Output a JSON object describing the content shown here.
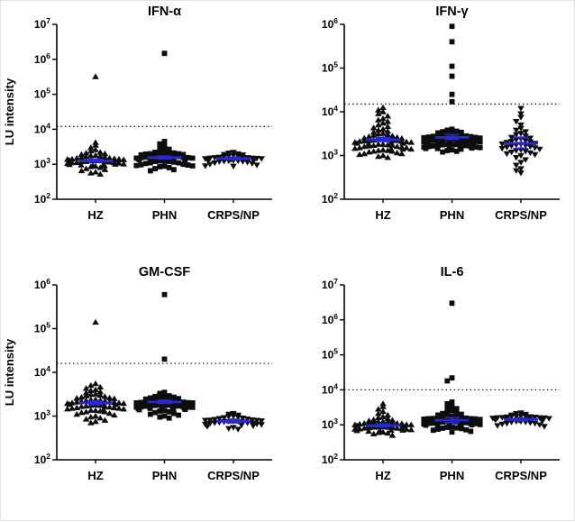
{
  "figure": {
    "ylabel": "LU intensity",
    "background": "#ffffff",
    "colors": {
      "points": "#0d0d0d",
      "mean": "#2828d8",
      "axis": "#000000",
      "threshold": "#222222",
      "text": "#000000"
    },
    "point_layout": "beeswarm",
    "legend": "none"
  },
  "chart_data": [
    {
      "type": "scatter",
      "title": "IFN-α",
      "ylabel": "LU intensity",
      "show_ylabel": true,
      "log_ylim": [
        2,
        7
      ],
      "threshold": 12000,
      "categories": [
        "HZ",
        "PHN",
        "CRPS/NP"
      ],
      "series": [
        {
          "name": "HZ",
          "marker": "triangle-up",
          "mean": 1250,
          "err_lo": 1150,
          "err_hi": 1380,
          "values": [
            520,
            560,
            600,
            650,
            700,
            750,
            800,
            850,
            880,
            900,
            920,
            950,
            980,
            1000,
            1000,
            1020,
            1050,
            1080,
            1100,
            1100,
            1120,
            1150,
            1180,
            1200,
            1200,
            1250,
            1250,
            1300,
            1300,
            1350,
            1400,
            1400,
            1450,
            1500,
            1500,
            1550,
            1600,
            1650,
            1700,
            1750,
            1800,
            1900,
            2000,
            2100,
            2200,
            2400,
            2600,
            3000,
            3500,
            4200,
            1250,
            1320,
            1380,
            320000
          ]
        },
        {
          "name": "PHN",
          "marker": "square",
          "mean": 1550,
          "err_lo": 1430,
          "err_hi": 1700,
          "values": [
            650,
            700,
            750,
            800,
            850,
            880,
            900,
            920,
            950,
            960,
            1000,
            1050,
            1100,
            1100,
            1150,
            1200,
            1200,
            1250,
            1250,
            1300,
            1300,
            1350,
            1350,
            1400,
            1400,
            1450,
            1450,
            1500,
            1500,
            1500,
            1550,
            1550,
            1600,
            1600,
            1650,
            1650,
            1700,
            1700,
            1750,
            1800,
            1800,
            1850,
            1900,
            1950,
            2000,
            2000,
            2100,
            2200,
            2300,
            2400,
            2500,
            2700,
            3000,
            3300,
            3800,
            4500,
            1480,
            1480000
          ]
        },
        {
          "name": "CRPS/NP",
          "marker": "triangle-down",
          "mean": 1450,
          "err_lo": 1350,
          "err_hi": 1580,
          "values": [
            880,
            900,
            950,
            1000,
            1050,
            1100,
            1150,
            1200,
            1200,
            1220,
            1250,
            1250,
            1280,
            1300,
            1300,
            1320,
            1350,
            1350,
            1380,
            1400,
            1400,
            1420,
            1450,
            1450,
            1480,
            1500,
            1500,
            1550,
            1550,
            1600,
            1600,
            1650,
            1700,
            1750,
            1800,
            1850,
            1900,
            2000,
            2100,
            2200
          ]
        }
      ]
    },
    {
      "type": "scatter",
      "title": "IFN-γ",
      "ylabel": "LU intensity",
      "show_ylabel": false,
      "log_ylim": [
        2,
        6
      ],
      "threshold": 15000,
      "categories": [
        "HZ",
        "PHN",
        "CRPS/NP"
      ],
      "series": [
        {
          "name": "HZ",
          "marker": "triangle-up",
          "mean": 2300,
          "err_lo": 2100,
          "err_hi": 2550,
          "values": [
            900,
            950,
            1000,
            1050,
            1100,
            1100,
            1150,
            1200,
            1250,
            1250,
            1300,
            1300,
            1350,
            1400,
            1400,
            1450,
            1500,
            1500,
            1550,
            1600,
            1600,
            1650,
            1700,
            1700,
            1750,
            1800,
            1800,
            1850,
            1900,
            1900,
            1950,
            2000,
            2000,
            2050,
            2100,
            2100,
            2150,
            2200,
            2200,
            2250,
            2300,
            2350,
            2400,
            2450,
            2500,
            2600,
            2700,
            2800,
            2900,
            3000,
            3100,
            3200,
            3400,
            3600,
            3800,
            4000,
            4300,
            4600,
            5000,
            5500,
            6000,
            6500,
            7000,
            8000,
            9000,
            10000,
            11000,
            12500,
            1400,
            2200
          ]
        },
        {
          "name": "PHN",
          "marker": "square",
          "mean": 2600,
          "err_lo": 2350,
          "err_hi": 3000,
          "values": [
            1200,
            1250,
            1300,
            1350,
            1400,
            1400,
            1450,
            1450,
            1480,
            1500,
            1520,
            1550,
            1560,
            1600,
            1620,
            1650,
            1680,
            1700,
            1720,
            1750,
            1780,
            1800,
            1800,
            1820,
            1850,
            1880,
            1900,
            1900,
            1920,
            1950,
            1960,
            2000,
            2000,
            2000,
            2020,
            2050,
            2080,
            2100,
            2100,
            2150,
            2200,
            2200,
            2250,
            2300,
            2300,
            2350,
            2400,
            2400,
            2450,
            2500,
            2500,
            2550,
            2600,
            2650,
            2700,
            2750,
            2800,
            2850,
            2900,
            3000,
            3000,
            3100,
            3200,
            3300,
            3400,
            3500,
            3600,
            3800,
            4000,
            17000,
            25000,
            65000,
            110000,
            400000,
            900000
          ]
        },
        {
          "name": "CRPS/NP",
          "marker": "triangle-down",
          "mean": 1900,
          "err_lo": 1450,
          "err_hi": 2600,
          "values": [
            400,
            450,
            500,
            600,
            700,
            800,
            900,
            1000,
            1050,
            1100,
            1150,
            1200,
            1250,
            1300,
            1350,
            1400,
            1450,
            1500,
            1550,
            1600,
            1650,
            1700,
            1750,
            1800,
            1850,
            1900,
            2000,
            2050,
            2100,
            2200,
            2300,
            2400,
            2500,
            2600,
            2800,
            3000,
            3200,
            3500,
            3800,
            4200,
            5000,
            6000,
            7500,
            9000,
            12000
          ]
        }
      ]
    },
    {
      "type": "scatter",
      "title": "GM-CSF",
      "ylabel": "LU intensity",
      "show_ylabel": true,
      "log_ylim": [
        2,
        6
      ],
      "threshold": 16000,
      "categories": [
        "HZ",
        "PHN",
        "CRPS/NP"
      ],
      "series": [
        {
          "name": "HZ",
          "marker": "triangle-up",
          "mean": 2000,
          "err_lo": 1850,
          "err_hi": 2200,
          "values": [
            700,
            750,
            800,
            850,
            900,
            950,
            1000,
            1050,
            1100,
            1150,
            1200,
            1250,
            1250,
            1300,
            1350,
            1350,
            1400,
            1450,
            1450,
            1500,
            1500,
            1550,
            1550,
            1600,
            1650,
            1650,
            1700,
            1750,
            1750,
            1800,
            1850,
            1850,
            1900,
            1950,
            1950,
            2000,
            2000,
            2050,
            2100,
            2100,
            2150,
            2200,
            2250,
            2300,
            2350,
            2400,
            2500,
            2550,
            2600,
            2700,
            2800,
            2900,
            3000,
            3100,
            3200,
            3400,
            3600,
            3800,
            4000,
            4300,
            4600,
            5000,
            5500,
            140000
          ]
        },
        {
          "name": "PHN",
          "marker": "square",
          "mean": 2100,
          "err_lo": 1950,
          "err_hi": 2300,
          "values": [
            900,
            950,
            1000,
            1050,
            1100,
            1150,
            1200,
            1250,
            1300,
            1350,
            1400,
            1420,
            1450,
            1480,
            1500,
            1500,
            1520,
            1550,
            1580,
            1600,
            1600,
            1620,
            1650,
            1680,
            1700,
            1700,
            1720,
            1750,
            1780,
            1800,
            1800,
            1820,
            1850,
            1880,
            1900,
            1900,
            1920,
            1950,
            1980,
            2000,
            2000,
            2020,
            2050,
            2080,
            2100,
            2100,
            2150,
            2200,
            2250,
            2300,
            2350,
            2400,
            2450,
            2500,
            2600,
            2700,
            2800,
            2900,
            3000,
            3100,
            3300,
            3500,
            20000,
            600000
          ]
        },
        {
          "name": "CRPS/NP",
          "marker": "triangle-down",
          "mean": 760,
          "err_lo": 700,
          "err_hi": 830,
          "values": [
            500,
            520,
            550,
            580,
            600,
            620,
            640,
            650,
            660,
            680,
            690,
            700,
            700,
            720,
            730,
            740,
            750,
            760,
            770,
            780,
            800,
            800,
            810,
            820,
            840,
            860,
            880,
            900,
            920,
            950,
            980,
            1000,
            1050,
            1100,
            1150
          ]
        }
      ]
    },
    {
      "type": "scatter",
      "title": "IL-6",
      "ylabel": "LU intensity",
      "show_ylabel": false,
      "log_ylim": [
        2,
        7
      ],
      "threshold": 10000,
      "categories": [
        "HZ",
        "PHN",
        "CRPS/NP"
      ],
      "series": [
        {
          "name": "HZ",
          "marker": "triangle-up",
          "mean": 950,
          "err_lo": 870,
          "err_hi": 1050,
          "values": [
            500,
            550,
            580,
            600,
            620,
            650,
            650,
            680,
            700,
            700,
            720,
            750,
            750,
            760,
            780,
            800,
            800,
            820,
            840,
            850,
            850,
            860,
            880,
            900,
            900,
            920,
            940,
            950,
            950,
            980,
            1000,
            1000,
            1020,
            1050,
            1080,
            1100,
            1100,
            1120,
            1150,
            1180,
            1200,
            1220,
            1250,
            1300,
            1350,
            1400,
            1500,
            1600,
            1700,
            1900,
            2100,
            2400,
            2800,
            3300,
            4000
          ]
        },
        {
          "name": "PHN",
          "marker": "square",
          "mean": 1350,
          "err_lo": 1150,
          "err_hi": 1600,
          "values": [
            620,
            650,
            700,
            720,
            750,
            780,
            800,
            820,
            850,
            880,
            900,
            920,
            950,
            980,
            1000,
            1000,
            1020,
            1050,
            1080,
            1100,
            1100,
            1120,
            1150,
            1180,
            1200,
            1200,
            1220,
            1250,
            1280,
            1300,
            1300,
            1320,
            1350,
            1380,
            1400,
            1400,
            1420,
            1450,
            1480,
            1500,
            1500,
            1520,
            1550,
            1580,
            1600,
            1650,
            1700,
            1750,
            1800,
            1900,
            2000,
            2100,
            2200,
            2400,
            2600,
            2900,
            3200,
            3600,
            4000,
            4500,
            18000,
            22000,
            3000000
          ]
        },
        {
          "name": "CRPS/NP",
          "marker": "triangle-down",
          "mean": 1420,
          "err_lo": 1300,
          "err_hi": 1560,
          "values": [
            900,
            950,
            1000,
            1050,
            1100,
            1100,
            1150,
            1200,
            1200,
            1250,
            1250,
            1300,
            1300,
            1350,
            1350,
            1400,
            1400,
            1420,
            1450,
            1450,
            1480,
            1500,
            1500,
            1520,
            1550,
            1580,
            1600,
            1600,
            1650,
            1700,
            1720,
            1750,
            1780,
            1800,
            1900,
            2000,
            2100,
            2200,
            1680,
            1620
          ]
        }
      ]
    }
  ]
}
